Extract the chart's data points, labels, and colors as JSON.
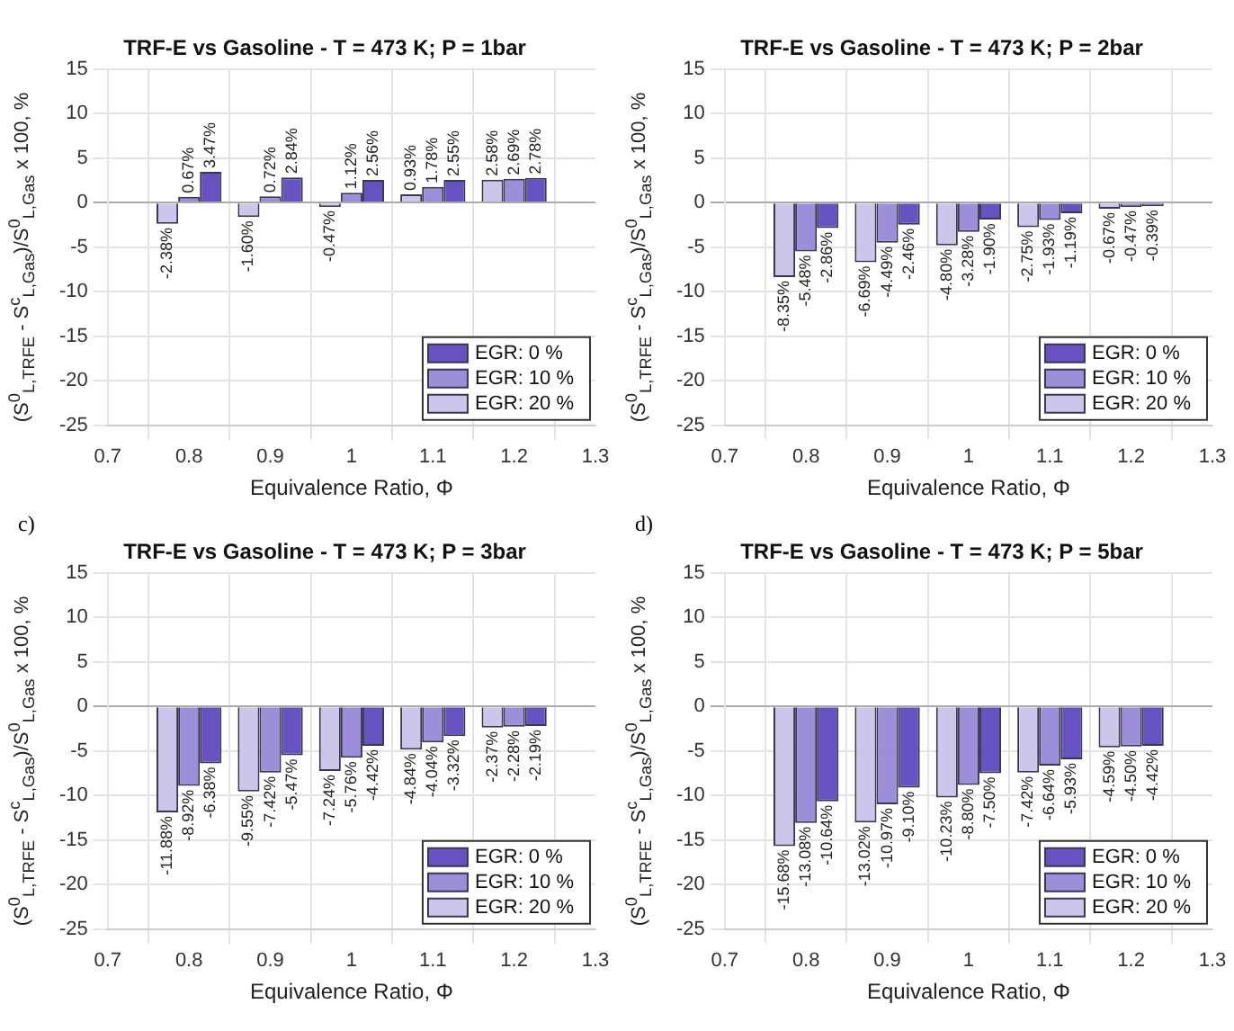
{
  "chart_data": [
    {
      "type": "bar",
      "title": "TRF-E vs Gasoline - T = 473 K; P = 1bar",
      "xlabel": "Equivalence Ratio, Φ",
      "ylabel": "(S$^{0}$$_{L,TRFE}$ - S$^{c}$$_{L,Gas}$)/S$^{0}$$_{L,Gas}$ x 100, %",
      "x": [
        0.8,
        0.9,
        1.0,
        1.1,
        1.2
      ],
      "xlim": [
        0.7,
        1.3
      ],
      "xticks": [
        0.7,
        0.8,
        0.9,
        1,
        1.1,
        1.2,
        1.3
      ],
      "ylim": [
        -25,
        15
      ],
      "yticks": [
        -25,
        -20,
        -15,
        -10,
        -5,
        0,
        5,
        10,
        15
      ],
      "grid": true,
      "legend": "bottom right",
      "series": [
        {
          "name": "EGR: 0 %",
          "color": "#6752c2",
          "values": [
            3.47,
            2.84,
            2.56,
            2.55,
            2.78
          ],
          "value_labels": [
            "3.47%",
            "2.84%",
            "2.56%",
            "2.55%",
            "2.78%"
          ]
        },
        {
          "name": "EGR: 10 %",
          "color": "#9c8ed9",
          "values": [
            0.67,
            0.72,
            1.12,
            1.78,
            2.69
          ],
          "value_labels": [
            "0.67%",
            "0.72%",
            "1.12%",
            "1.78%",
            "2.69%"
          ]
        },
        {
          "name": "EGR: 20 %",
          "color": "#cdc6eb",
          "values": [
            -2.38,
            -1.6,
            -0.47,
            0.93,
            2.58
          ],
          "value_labels": [
            "-2.38%",
            "-1.60%",
            "-0.47%",
            "0.93%",
            "2.58%"
          ]
        }
      ]
    },
    {
      "type": "bar",
      "title": "TRF-E vs Gasoline - T = 473 K; P = 2bar",
      "xlabel": "Equivalence Ratio, Φ",
      "ylabel": "(S$^{0}$$_{L,TRFE}$ - S$^{c}$$_{L,Gas}$)/S$^{0}$$_{L,Gas}$ x 100, %",
      "x": [
        0.8,
        0.9,
        1.0,
        1.1,
        1.2
      ],
      "xlim": [
        0.7,
        1.3
      ],
      "xticks": [
        0.7,
        0.8,
        0.9,
        1,
        1.1,
        1.2,
        1.3
      ],
      "ylim": [
        -25,
        15
      ],
      "yticks": [
        -25,
        -20,
        -15,
        -10,
        -5,
        0,
        5,
        10,
        15
      ],
      "grid": true,
      "legend": "bottom right",
      "series": [
        {
          "name": "EGR: 0 %",
          "color": "#6752c2",
          "values": [
            -2.86,
            -2.46,
            -1.9,
            -1.19,
            -0.39
          ],
          "value_labels": [
            "-2.86%",
            "-2.46%",
            "-1.90%",
            "-1.19%",
            "-0.39%"
          ]
        },
        {
          "name": "EGR: 10 %",
          "color": "#9c8ed9",
          "values": [
            -5.48,
            -4.49,
            -3.28,
            -1.93,
            -0.47
          ],
          "value_labels": [
            "-5.48%",
            "-4.49%",
            "-3.28%",
            "-1.93%",
            "-0.47%"
          ]
        },
        {
          "name": "EGR: 20 %",
          "color": "#cdc6eb",
          "values": [
            -8.35,
            -6.69,
            -4.8,
            -2.75,
            -0.67
          ],
          "value_labels": [
            "-8.35%",
            "-6.69%",
            "-4.80%",
            "-2.75%",
            "-0.67%"
          ]
        }
      ]
    },
    {
      "type": "bar",
      "title": "TRF-E vs Gasoline - T = 473 K; P = 3bar",
      "xlabel": "Equivalence Ratio, Φ",
      "ylabel": "(S$^{0}$$_{L,TRFE}$ - S$^{c}$$_{L,Gas}$)/S$^{0}$$_{L,Gas}$ x 100, %",
      "annotations": [
        "c)"
      ],
      "x": [
        0.8,
        0.9,
        1.0,
        1.1,
        1.2
      ],
      "xlim": [
        0.7,
        1.3
      ],
      "xticks": [
        0.7,
        0.8,
        0.9,
        1,
        1.1,
        1.2,
        1.3
      ],
      "ylim": [
        -25,
        15
      ],
      "yticks": [
        -25,
        -20,
        -15,
        -10,
        -5,
        0,
        5,
        10,
        15
      ],
      "grid": true,
      "legend": "bottom right",
      "series": [
        {
          "name": "EGR: 0 %",
          "color": "#6752c2",
          "values": [
            -6.38,
            -5.47,
            -4.42,
            -3.32,
            -2.19
          ],
          "value_labels": [
            "-6.38%",
            "-5.47%",
            "-4.42%",
            "-3.32%",
            "-2.19%"
          ]
        },
        {
          "name": "EGR: 10 %",
          "color": "#9c8ed9",
          "values": [
            -8.92,
            -7.42,
            -5.76,
            -4.04,
            -2.28
          ],
          "value_labels": [
            "-8.92%",
            "-7.42%",
            "-5.76%",
            "-4.04%",
            "-2.28%"
          ]
        },
        {
          "name": "EGR: 20 %",
          "color": "#cdc6eb",
          "values": [
            -11.88,
            -9.55,
            -7.24,
            -4.84,
            -2.37
          ],
          "value_labels": [
            "-11.88%",
            "-9.55%",
            "-7.24%",
            "-4.84%",
            "-2.37%"
          ]
        }
      ]
    },
    {
      "type": "bar",
      "title": "TRF-E vs Gasoline - T = 473 K; P = 5bar",
      "xlabel": "Equivalence Ratio, Φ",
      "ylabel": "(S$^{0}$$_{L,TRFE}$ - S$^{c}$$_{L,Gas}$)/S$^{0}$$_{L,Gas}$ x 100, %",
      "annotations": [
        "d)"
      ],
      "x": [
        0.8,
        0.9,
        1.0,
        1.1,
        1.2
      ],
      "xlim": [
        0.7,
        1.3
      ],
      "xticks": [
        0.7,
        0.8,
        0.9,
        1,
        1.1,
        1.2,
        1.3
      ],
      "ylim": [
        -25,
        15
      ],
      "yticks": [
        -25,
        -20,
        -15,
        -10,
        -5,
        0,
        5,
        10,
        15
      ],
      "grid": true,
      "legend": "bottom right",
      "series": [
        {
          "name": "EGR: 0 %",
          "color": "#6752c2",
          "values": [
            -10.64,
            -9.1,
            -7.5,
            -5.93,
            -4.42
          ],
          "value_labels": [
            "-10.64%",
            "-9.10%",
            "-7.50%",
            "-5.93%",
            "-4.42%"
          ]
        },
        {
          "name": "EGR: 10 %",
          "color": "#9c8ed9",
          "values": [
            -13.08,
            -10.97,
            -8.8,
            -6.64,
            -4.5
          ],
          "value_labels": [
            "-13.08%",
            "-10.97%",
            "-8.80%",
            "-6.64%",
            "-4.50%"
          ]
        },
        {
          "name": "EGR: 20 %",
          "color": "#cdc6eb",
          "values": [
            -15.68,
            -13.02,
            -10.23,
            -7.42,
            -4.59
          ],
          "value_labels": [
            "-15.68%",
            "-13.02%",
            "-10.23%",
            "-7.42%",
            "-4.59%"
          ]
        }
      ]
    }
  ]
}
